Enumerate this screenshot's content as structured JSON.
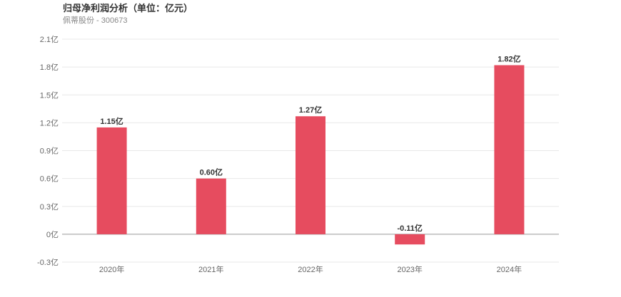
{
  "chart_data": {
    "type": "bar",
    "title": "归母净利润分析（单位：亿元）",
    "subtitle": "佩蒂股份 - 300673",
    "categories": [
      "2020年",
      "2021年",
      "2022年",
      "2023年",
      "2024年"
    ],
    "values": [
      1.15,
      0.6,
      1.27,
      -0.11,
      1.82
    ],
    "data_labels": [
      "1.15亿",
      "0.60亿",
      "1.27亿",
      "-0.11亿",
      "1.82亿"
    ],
    "y_ticks": [
      -0.3,
      0,
      0.3,
      0.6,
      0.9,
      1.2,
      1.5,
      1.8,
      2.1
    ],
    "y_tick_labels": [
      "-0.3亿",
      "0亿",
      "0.3亿",
      "0.6亿",
      "0.9亿",
      "1.2亿",
      "1.5亿",
      "1.8亿",
      "2.1亿"
    ],
    "ylim": [
      -0.3,
      2.1
    ],
    "grid": true,
    "bar_color": "#e64c5f"
  }
}
